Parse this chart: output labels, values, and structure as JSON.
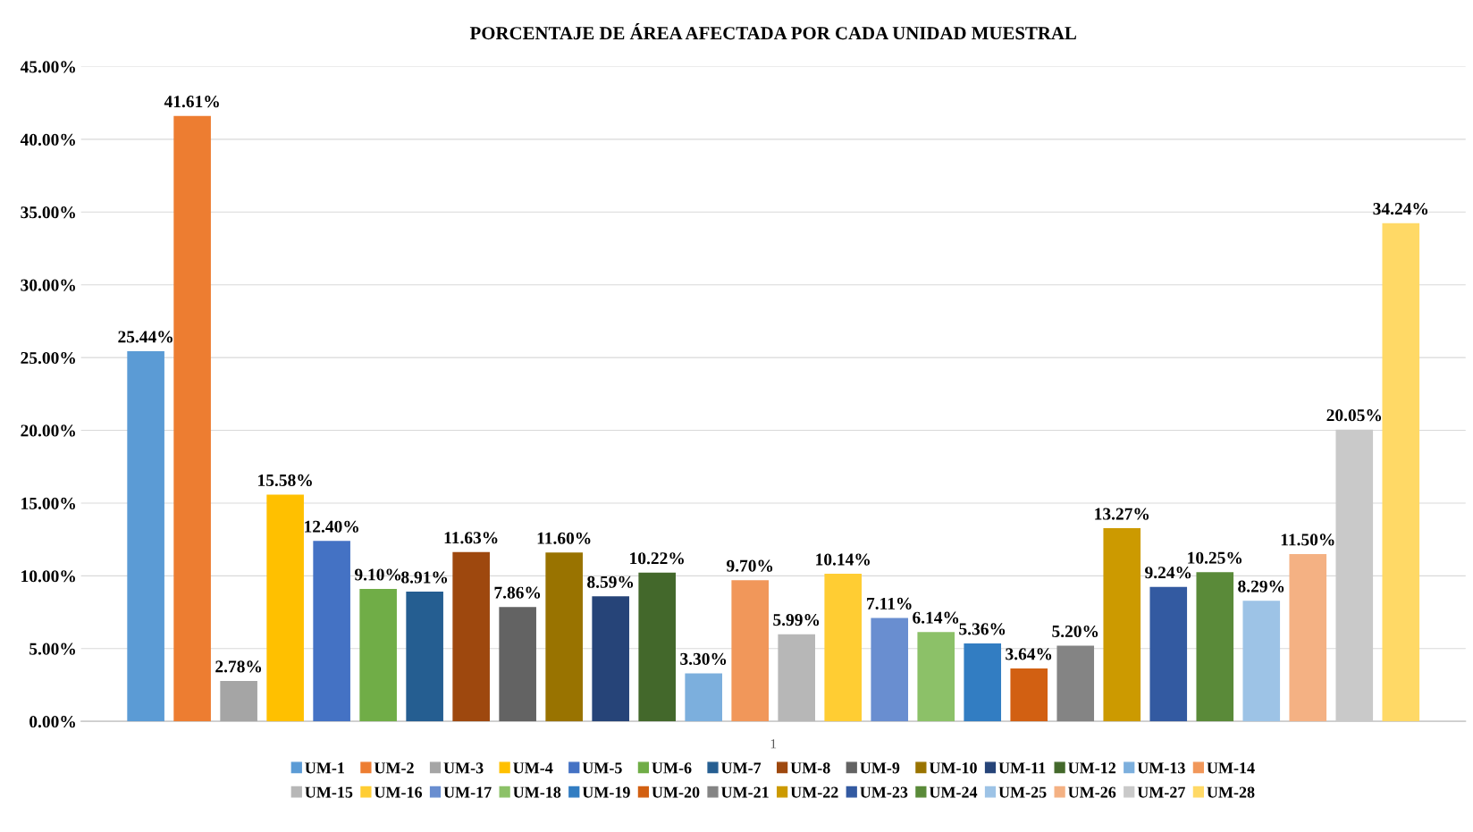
{
  "chart_data": {
    "type": "bar",
    "title": "PORCENTAJE DE ÁREA AFECTADA POR CADA UNIDAD MUESTRAL",
    "categories": [
      "1"
    ],
    "ylim": [
      0,
      45
    ],
    "yticks": [
      {
        "value": 0,
        "label": "0.00%"
      },
      {
        "value": 5,
        "label": "5.00%"
      },
      {
        "value": 10,
        "label": "10.00%"
      },
      {
        "value": 15,
        "label": "15.00%"
      },
      {
        "value": 20,
        "label": "20.00%"
      },
      {
        "value": 25,
        "label": "25.00%"
      },
      {
        "value": 30,
        "label": "30.00%"
      },
      {
        "value": 35,
        "label": "35.00%"
      },
      {
        "value": 40,
        "label": "40.00%"
      },
      {
        "value": 45,
        "label": "45.00%"
      }
    ],
    "grid": "y",
    "legend": "bottom",
    "series": [
      {
        "name": "UM-1",
        "color": "#5b9bd5",
        "values": [
          25.44
        ],
        "value_labels": [
          "25.44%"
        ]
      },
      {
        "name": "UM-2",
        "color": "#ed7d31",
        "values": [
          41.61
        ],
        "value_labels": [
          "41.61%"
        ]
      },
      {
        "name": "UM-3",
        "color": "#a5a5a5",
        "values": [
          2.78
        ],
        "value_labels": [
          "2.78%"
        ]
      },
      {
        "name": "UM-4",
        "color": "#ffc000",
        "values": [
          15.58
        ],
        "value_labels": [
          "15.58%"
        ]
      },
      {
        "name": "UM-5",
        "color": "#4472c4",
        "values": [
          12.4
        ],
        "value_labels": [
          "12.40%"
        ]
      },
      {
        "name": "UM-6",
        "color": "#70ad47",
        "values": [
          9.1
        ],
        "value_labels": [
          "9.10%"
        ]
      },
      {
        "name": "UM-7",
        "color": "#255e91",
        "values": [
          8.91
        ],
        "value_labels": [
          "8.91%"
        ]
      },
      {
        "name": "UM-8",
        "color": "#9e480e",
        "values": [
          11.63
        ],
        "value_labels": [
          "11.63%"
        ]
      },
      {
        "name": "UM-9",
        "color": "#636363",
        "values": [
          7.86
        ],
        "value_labels": [
          "7.86%"
        ]
      },
      {
        "name": "UM-10",
        "color": "#997300",
        "values": [
          11.6
        ],
        "value_labels": [
          "11.60%"
        ]
      },
      {
        "name": "UM-11",
        "color": "#264478",
        "values": [
          8.59
        ],
        "value_labels": [
          "8.59%"
        ]
      },
      {
        "name": "UM-12",
        "color": "#43682b",
        "values": [
          10.22
        ],
        "value_labels": [
          "10.22%"
        ]
      },
      {
        "name": "UM-13",
        "color": "#7cafdd",
        "values": [
          3.3
        ],
        "value_labels": [
          "3.30%"
        ]
      },
      {
        "name": "UM-14",
        "color": "#f1975a",
        "values": [
          9.7
        ],
        "value_labels": [
          "9.70%"
        ]
      },
      {
        "name": "UM-15",
        "color": "#b7b7b7",
        "values": [
          5.99
        ],
        "value_labels": [
          "5.99%"
        ]
      },
      {
        "name": "UM-16",
        "color": "#ffcd33",
        "values": [
          10.14
        ],
        "value_labels": [
          "10.14%"
        ]
      },
      {
        "name": "UM-17",
        "color": "#698ed0",
        "values": [
          7.11
        ],
        "value_labels": [
          "7.11%"
        ]
      },
      {
        "name": "UM-18",
        "color": "#8cc168",
        "values": [
          6.14
        ],
        "value_labels": [
          "6.14%"
        ]
      },
      {
        "name": "UM-19",
        "color": "#327dc2",
        "values": [
          5.36
        ],
        "value_labels": [
          "5.36%"
        ]
      },
      {
        "name": "UM-20",
        "color": "#d26012",
        "values": [
          3.64
        ],
        "value_labels": [
          "3.64%"
        ]
      },
      {
        "name": "UM-21",
        "color": "#848484",
        "values": [
          5.2
        ],
        "value_labels": [
          "5.20%"
        ]
      },
      {
        "name": "UM-22",
        "color": "#cc9a00",
        "values": [
          13.27
        ],
        "value_labels": [
          "13.27%"
        ]
      },
      {
        "name": "UM-23",
        "color": "#335aa1",
        "values": [
          9.24
        ],
        "value_labels": [
          "9.24%"
        ]
      },
      {
        "name": "UM-24",
        "color": "#5a8a39",
        "values": [
          10.25
        ],
        "value_labels": [
          "10.25%"
        ]
      },
      {
        "name": "UM-25",
        "color": "#9dc3e6",
        "values": [
          8.29
        ],
        "value_labels": [
          "8.29%"
        ]
      },
      {
        "name": "UM-26",
        "color": "#f4b183",
        "values": [
          11.5
        ],
        "value_labels": [
          "11.50%"
        ]
      },
      {
        "name": "UM-27",
        "color": "#c9c9c9",
        "values": [
          20.05
        ],
        "value_labels": [
          "20.05%"
        ]
      },
      {
        "name": "UM-28",
        "color": "#ffd966",
        "values": [
          34.24
        ],
        "value_labels": [
          "34.24%"
        ]
      }
    ]
  }
}
